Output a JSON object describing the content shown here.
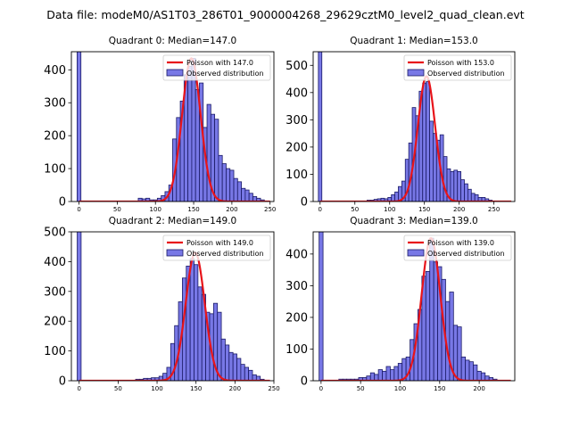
{
  "figure": {
    "suptitle": "Data file: modeM0/AS1T03_286T01_9000004268_29629cztM0_level2_quad_clean.evt"
  },
  "colors": {
    "bar_fill": "#7878e6",
    "bar_edge": "#1a1a66",
    "curve": "#e8141a"
  },
  "chart_data": [
    {
      "type": "bar",
      "title": "Quadrant 0: Median=147.0",
      "xlim": [
        -10,
        255
      ],
      "ylim": [
        0,
        455
      ],
      "xticks": [
        0,
        50,
        100,
        150,
        200,
        250
      ],
      "yticks": [
        0,
        100,
        200,
        300,
        400
      ],
      "bin_width": 5,
      "spike": {
        "x": 0,
        "value": 455
      },
      "bins": [
        [
          80,
          10
        ],
        [
          85,
          8
        ],
        [
          90,
          10
        ],
        [
          95,
          5
        ],
        [
          100,
          5
        ],
        [
          105,
          10
        ],
        [
          110,
          18
        ],
        [
          115,
          30
        ],
        [
          120,
          50
        ],
        [
          125,
          190
        ],
        [
          130,
          255
        ],
        [
          135,
          305
        ],
        [
          140,
          385
        ],
        [
          145,
          410
        ],
        [
          150,
          435
        ],
        [
          155,
          340
        ],
        [
          160,
          360
        ],
        [
          165,
          225
        ],
        [
          170,
          295
        ],
        [
          175,
          265
        ],
        [
          180,
          250
        ],
        [
          185,
          140
        ],
        [
          190,
          115
        ],
        [
          195,
          100
        ],
        [
          200,
          95
        ],
        [
          205,
          70
        ],
        [
          210,
          60
        ],
        [
          215,
          40
        ],
        [
          220,
          35
        ],
        [
          225,
          25
        ],
        [
          230,
          15
        ],
        [
          235,
          10
        ],
        [
          240,
          5
        ]
      ],
      "poisson": {
        "label": "Poisson with 147.0",
        "mean": 147.0,
        "peak": 435
      },
      "legend": {
        "curve_label": "Poisson with 147.0",
        "bars_label": "Observed distribution",
        "position": "top-right"
      }
    },
    {
      "type": "bar",
      "title": "Quadrant 1: Median=153.0",
      "xlim": [
        -10,
        280
      ],
      "ylim": [
        0,
        550
      ],
      "xticks": [
        0,
        50,
        100,
        150,
        200,
        250
      ],
      "yticks": [
        0,
        100,
        200,
        300,
        400,
        500
      ],
      "bin_width": 5,
      "spike": {
        "x": 0,
        "value": 550
      },
      "bins": [
        [
          70,
          5
        ],
        [
          75,
          5
        ],
        [
          80,
          8
        ],
        [
          85,
          10
        ],
        [
          90,
          12
        ],
        [
          95,
          10
        ],
        [
          100,
          15
        ],
        [
          105,
          25
        ],
        [
          110,
          35
        ],
        [
          115,
          55
        ],
        [
          120,
          75
        ],
        [
          125,
          155
        ],
        [
          130,
          215
        ],
        [
          135,
          345
        ],
        [
          140,
          315
        ],
        [
          145,
          405
        ],
        [
          150,
          435
        ],
        [
          155,
          440
        ],
        [
          160,
          295
        ],
        [
          165,
          250
        ],
        [
          170,
          225
        ],
        [
          175,
          245
        ],
        [
          180,
          165
        ],
        [
          185,
          120
        ],
        [
          190,
          110
        ],
        [
          195,
          115
        ],
        [
          200,
          110
        ],
        [
          205,
          80
        ],
        [
          210,
          65
        ],
        [
          215,
          45
        ],
        [
          220,
          30
        ],
        [
          225,
          25
        ],
        [
          230,
          15
        ],
        [
          235,
          15
        ],
        [
          240,
          10
        ],
        [
          245,
          5
        ]
      ],
      "poisson": {
        "label": "Poisson with 153.0",
        "mean": 153.0,
        "peak": 460
      },
      "legend": {
        "curve_label": "Poisson with 153.0",
        "bars_label": "Observed distribution",
        "position": "top-right"
      }
    },
    {
      "type": "bar",
      "title": "Quadrant 2: Median=149.0",
      "xlim": [
        -10,
        250
      ],
      "ylim": [
        0,
        500
      ],
      "xticks": [
        0,
        50,
        100,
        150,
        200,
        250
      ],
      "yticks": [
        0,
        100,
        200,
        300,
        400,
        500
      ],
      "bin_width": 5,
      "spike": {
        "x": 0,
        "value": 500
      },
      "bins": [
        [
          75,
          5
        ],
        [
          80,
          5
        ],
        [
          85,
          8
        ],
        [
          90,
          8
        ],
        [
          95,
          10
        ],
        [
          100,
          10
        ],
        [
          105,
          15
        ],
        [
          110,
          25
        ],
        [
          115,
          45
        ],
        [
          120,
          125
        ],
        [
          125,
          185
        ],
        [
          130,
          265
        ],
        [
          135,
          345
        ],
        [
          140,
          385
        ],
        [
          145,
          410
        ],
        [
          150,
          390
        ],
        [
          155,
          315
        ],
        [
          160,
          290
        ],
        [
          165,
          230
        ],
        [
          170,
          225
        ],
        [
          175,
          260
        ],
        [
          180,
          230
        ],
        [
          185,
          140
        ],
        [
          190,
          120
        ],
        [
          195,
          95
        ],
        [
          200,
          90
        ],
        [
          205,
          75
        ],
        [
          210,
          55
        ],
        [
          215,
          45
        ],
        [
          220,
          35
        ],
        [
          225,
          20
        ],
        [
          230,
          15
        ],
        [
          235,
          5
        ]
      ],
      "poisson": {
        "label": "Poisson with 149.0",
        "mean": 149.0,
        "peak": 430
      },
      "legend": {
        "curve_label": "Poisson with 149.0",
        "bars_label": "Observed distribution",
        "position": "top-right"
      }
    },
    {
      "type": "bar",
      "title": "Quadrant 3: Median=139.0",
      "xlim": [
        -10,
        245
      ],
      "ylim": [
        0,
        470
      ],
      "xticks": [
        0,
        50,
        100,
        150,
        200
      ],
      "yticks": [
        0,
        100,
        200,
        300,
        400
      ],
      "bin_width": 5,
      "spike": {
        "x": 0,
        "value": 470
      },
      "bins": [
        [
          25,
          5
        ],
        [
          30,
          5
        ],
        [
          35,
          5
        ],
        [
          40,
          5
        ],
        [
          45,
          5
        ],
        [
          50,
          10
        ],
        [
          55,
          10
        ],
        [
          60,
          15
        ],
        [
          65,
          25
        ],
        [
          70,
          20
        ],
        [
          75,
          35
        ],
        [
          80,
          30
        ],
        [
          85,
          45
        ],
        [
          90,
          35
        ],
        [
          95,
          45
        ],
        [
          100,
          55
        ],
        [
          105,
          70
        ],
        [
          110,
          75
        ],
        [
          115,
          130
        ],
        [
          120,
          180
        ],
        [
          125,
          225
        ],
        [
          130,
          330
        ],
        [
          135,
          345
        ],
        [
          140,
          450
        ],
        [
          145,
          375
        ],
        [
          150,
          360
        ],
        [
          155,
          320
        ],
        [
          160,
          250
        ],
        [
          165,
          280
        ],
        [
          170,
          175
        ],
        [
          175,
          170
        ],
        [
          180,
          75
        ],
        [
          185,
          65
        ],
        [
          190,
          60
        ],
        [
          195,
          50
        ],
        [
          200,
          30
        ],
        [
          205,
          25
        ],
        [
          210,
          15
        ],
        [
          215,
          10
        ],
        [
          220,
          5
        ]
      ],
      "poisson": {
        "label": "Poisson with 139.0",
        "mean": 139.0,
        "peak": 450
      },
      "legend": {
        "curve_label": "Poisson with 139.0",
        "bars_label": "Observed distribution",
        "position": "top-right"
      }
    }
  ]
}
